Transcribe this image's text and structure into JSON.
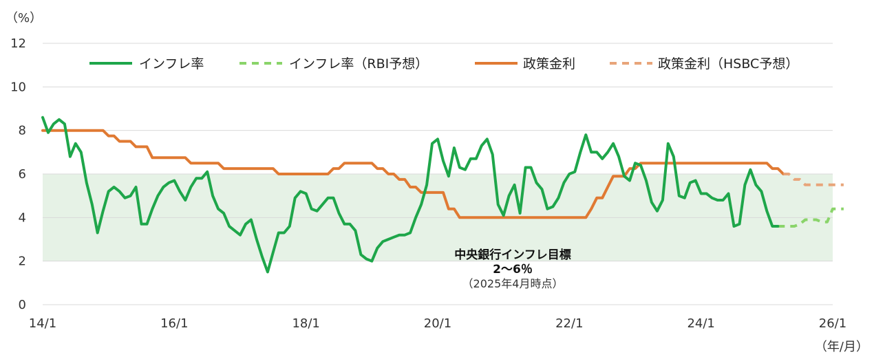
{
  "chart_data": {
    "type": "line",
    "ylabel_unit": "（%）",
    "xlabel_unit": "（年/月）",
    "ylim": [
      0,
      12
    ],
    "yticks": [
      "0",
      "2",
      "4",
      "6",
      "8",
      "10",
      "12"
    ],
    "xlim": [
      "2014-01",
      "2026-01"
    ],
    "xticks": [
      {
        "label": "14/1",
        "x": "2014-01"
      },
      {
        "label": "16/1",
        "x": "2016-01"
      },
      {
        "label": "18/1",
        "x": "2018-01"
      },
      {
        "label": "20/1",
        "x": "2020-01"
      },
      {
        "label": "22/1",
        "x": "2022-01"
      },
      {
        "label": "24/1",
        "x": "2024-01"
      },
      {
        "label": "26/1",
        "x": "2026-01"
      }
    ],
    "grid": true,
    "legend_position": "top",
    "target_band": {
      "y_range": [
        2,
        6
      ],
      "title": "中央銀行インフレ目標",
      "range_text": "2～6％",
      "note": "（2025年4月時点）",
      "color": "#e6f2e6"
    },
    "series": [
      {
        "name": "インフレ率",
        "color": "#1ea64a",
        "style": "solid",
        "points": [
          [
            "2014-01",
            8.6
          ],
          [
            "2014-02",
            7.9
          ],
          [
            "2014-03",
            8.3
          ],
          [
            "2014-04",
            8.5
          ],
          [
            "2014-05",
            8.3
          ],
          [
            "2014-06",
            6.8
          ],
          [
            "2014-07",
            7.4
          ],
          [
            "2014-08",
            7.0
          ],
          [
            "2014-09",
            5.6
          ],
          [
            "2014-10",
            4.6
          ],
          [
            "2014-11",
            3.3
          ],
          [
            "2014-12",
            4.3
          ],
          [
            "2015-01",
            5.2
          ],
          [
            "2015-02",
            5.4
          ],
          [
            "2015-03",
            5.2
          ],
          [
            "2015-04",
            4.9
          ],
          [
            "2015-05",
            5.0
          ],
          [
            "2015-06",
            5.4
          ],
          [
            "2015-07",
            3.7
          ],
          [
            "2015-08",
            3.7
          ],
          [
            "2015-09",
            4.4
          ],
          [
            "2015-10",
            5.0
          ],
          [
            "2015-11",
            5.4
          ],
          [
            "2015-12",
            5.6
          ],
          [
            "2016-01",
            5.7
          ],
          [
            "2016-02",
            5.2
          ],
          [
            "2016-03",
            4.8
          ],
          [
            "2016-04",
            5.4
          ],
          [
            "2016-05",
            5.8
          ],
          [
            "2016-06",
            5.8
          ],
          [
            "2016-07",
            6.1
          ],
          [
            "2016-08",
            5.0
          ],
          [
            "2016-09",
            4.4
          ],
          [
            "2016-10",
            4.2
          ],
          [
            "2016-11",
            3.6
          ],
          [
            "2016-12",
            3.4
          ],
          [
            "2017-01",
            3.2
          ],
          [
            "2017-02",
            3.7
          ],
          [
            "2017-03",
            3.9
          ],
          [
            "2017-04",
            3.0
          ],
          [
            "2017-05",
            2.2
          ],
          [
            "2017-06",
            1.5
          ],
          [
            "2017-07",
            2.4
          ],
          [
            "2017-08",
            3.3
          ],
          [
            "2017-09",
            3.3
          ],
          [
            "2017-10",
            3.6
          ],
          [
            "2017-11",
            4.9
          ],
          [
            "2017-12",
            5.2
          ],
          [
            "2018-01",
            5.1
          ],
          [
            "2018-02",
            4.4
          ],
          [
            "2018-03",
            4.3
          ],
          [
            "2018-04",
            4.6
          ],
          [
            "2018-05",
            4.9
          ],
          [
            "2018-06",
            4.9
          ],
          [
            "2018-07",
            4.2
          ],
          [
            "2018-08",
            3.7
          ],
          [
            "2018-09",
            3.7
          ],
          [
            "2018-10",
            3.4
          ],
          [
            "2018-11",
            2.3
          ],
          [
            "2018-12",
            2.1
          ],
          [
            "2019-01",
            2.0
          ],
          [
            "2019-02",
            2.6
          ],
          [
            "2019-03",
            2.9
          ],
          [
            "2019-04",
            3.0
          ],
          [
            "2019-05",
            3.1
          ],
          [
            "2019-06",
            3.2
          ],
          [
            "2019-07",
            3.2
          ],
          [
            "2019-08",
            3.3
          ],
          [
            "2019-09",
            4.0
          ],
          [
            "2019-10",
            4.6
          ],
          [
            "2019-11",
            5.5
          ],
          [
            "2019-12",
            7.4
          ],
          [
            "2020-01",
            7.6
          ],
          [
            "2020-02",
            6.6
          ],
          [
            "2020-03",
            5.9
          ],
          [
            "2020-04",
            7.2
          ],
          [
            "2020-05",
            6.3
          ],
          [
            "2020-06",
            6.2
          ],
          [
            "2020-07",
            6.7
          ],
          [
            "2020-08",
            6.7
          ],
          [
            "2020-09",
            7.3
          ],
          [
            "2020-10",
            7.6
          ],
          [
            "2020-11",
            6.9
          ],
          [
            "2020-12",
            4.6
          ],
          [
            "2021-01",
            4.1
          ],
          [
            "2021-02",
            5.0
          ],
          [
            "2021-03",
            5.5
          ],
          [
            "2021-04",
            4.2
          ],
          [
            "2021-05",
            6.3
          ],
          [
            "2021-06",
            6.3
          ],
          [
            "2021-07",
            5.6
          ],
          [
            "2021-08",
            5.3
          ],
          [
            "2021-09",
            4.4
          ],
          [
            "2021-10",
            4.5
          ],
          [
            "2021-11",
            4.9
          ],
          [
            "2021-12",
            5.6
          ],
          [
            "2022-01",
            6.0
          ],
          [
            "2022-02",
            6.1
          ],
          [
            "2022-03",
            7.0
          ],
          [
            "2022-04",
            7.8
          ],
          [
            "2022-05",
            7.0
          ],
          [
            "2022-06",
            7.0
          ],
          [
            "2022-07",
            6.7
          ],
          [
            "2022-08",
            7.0
          ],
          [
            "2022-09",
            7.4
          ],
          [
            "2022-10",
            6.8
          ],
          [
            "2022-11",
            5.9
          ],
          [
            "2022-12",
            5.7
          ],
          [
            "2023-01",
            6.5
          ],
          [
            "2023-02",
            6.4
          ],
          [
            "2023-03",
            5.7
          ],
          [
            "2023-04",
            4.7
          ],
          [
            "2023-05",
            4.3
          ],
          [
            "2023-06",
            4.8
          ],
          [
            "2023-07",
            7.4
          ],
          [
            "2023-08",
            6.8
          ],
          [
            "2023-09",
            5.0
          ],
          [
            "2023-10",
            4.9
          ],
          [
            "2023-11",
            5.6
          ],
          [
            "2023-12",
            5.7
          ],
          [
            "2024-01",
            5.1
          ],
          [
            "2024-02",
            5.1
          ],
          [
            "2024-03",
            4.9
          ],
          [
            "2024-04",
            4.8
          ],
          [
            "2024-05",
            4.8
          ],
          [
            "2024-06",
            5.1
          ],
          [
            "2024-07",
            3.6
          ],
          [
            "2024-08",
            3.7
          ],
          [
            "2024-09",
            5.5
          ],
          [
            "2024-10",
            6.2
          ],
          [
            "2024-11",
            5.5
          ],
          [
            "2024-12",
            5.2
          ],
          [
            "2025-01",
            4.3
          ],
          [
            "2025-02",
            3.6
          ],
          [
            "2025-03",
            3.6
          ]
        ]
      },
      {
        "name": "インフレ率（RBI予想）",
        "color": "#8ad46a",
        "style": "dashed",
        "points": [
          [
            "2025-03",
            3.6
          ],
          [
            "2025-04",
            3.6
          ],
          [
            "2025-05",
            3.6
          ],
          [
            "2025-06",
            3.6
          ],
          [
            "2025-07",
            3.7
          ],
          [
            "2025-08",
            3.9
          ],
          [
            "2025-09",
            3.9
          ],
          [
            "2025-10",
            3.9
          ],
          [
            "2025-11",
            3.8
          ],
          [
            "2025-12",
            3.8
          ],
          [
            "2026-01",
            4.4
          ],
          [
            "2026-02",
            4.4
          ],
          [
            "2026-03",
            4.4
          ]
        ]
      },
      {
        "name": "政策金利",
        "color": "#e07a33",
        "style": "solid",
        "points": [
          [
            "2014-01",
            8.0
          ],
          [
            "2014-12",
            8.0
          ],
          [
            "2015-01",
            7.75
          ],
          [
            "2015-02",
            7.75
          ],
          [
            "2015-03",
            7.5
          ],
          [
            "2015-05",
            7.5
          ],
          [
            "2015-06",
            7.25
          ],
          [
            "2015-08",
            7.25
          ],
          [
            "2015-09",
            6.75
          ],
          [
            "2016-03",
            6.75
          ],
          [
            "2016-04",
            6.5
          ],
          [
            "2016-09",
            6.5
          ],
          [
            "2016-10",
            6.25
          ],
          [
            "2017-07",
            6.25
          ],
          [
            "2017-08",
            6.0
          ],
          [
            "2018-05",
            6.0
          ],
          [
            "2018-06",
            6.25
          ],
          [
            "2018-07",
            6.25
          ],
          [
            "2018-08",
            6.5
          ],
          [
            "2019-01",
            6.5
          ],
          [
            "2019-02",
            6.25
          ],
          [
            "2019-03",
            6.25
          ],
          [
            "2019-04",
            6.0
          ],
          [
            "2019-05",
            6.0
          ],
          [
            "2019-06",
            5.75
          ],
          [
            "2019-07",
            5.75
          ],
          [
            "2019-08",
            5.4
          ],
          [
            "2019-09",
            5.4
          ],
          [
            "2019-10",
            5.15
          ],
          [
            "2020-02",
            5.15
          ],
          [
            "2020-03",
            4.4
          ],
          [
            "2020-04",
            4.4
          ],
          [
            "2020-05",
            4.0
          ],
          [
            "2022-04",
            4.0
          ],
          [
            "2022-05",
            4.4
          ],
          [
            "2022-06",
            4.9
          ],
          [
            "2022-07",
            4.9
          ],
          [
            "2022-08",
            5.4
          ],
          [
            "2022-09",
            5.9
          ],
          [
            "2022-11",
            5.9
          ],
          [
            "2022-12",
            6.25
          ],
          [
            "2023-01",
            6.25
          ],
          [
            "2023-02",
            6.5
          ],
          [
            "2025-01",
            6.5
          ],
          [
            "2025-02",
            6.25
          ],
          [
            "2025-03",
            6.25
          ],
          [
            "2025-04",
            6.0
          ]
        ]
      },
      {
        "name": "政策金利（HSBC予想）",
        "color": "#e8a57a",
        "style": "dashed",
        "points": [
          [
            "2025-04",
            6.0
          ],
          [
            "2025-05",
            6.0
          ],
          [
            "2025-06",
            5.75
          ],
          [
            "2025-07",
            5.75
          ],
          [
            "2025-08",
            5.5
          ],
          [
            "2025-09",
            5.5
          ],
          [
            "2025-10",
            5.5
          ],
          [
            "2025-11",
            5.5
          ],
          [
            "2025-12",
            5.5
          ],
          [
            "2026-01",
            5.5
          ],
          [
            "2026-02",
            5.5
          ],
          [
            "2026-03",
            5.5
          ]
        ]
      }
    ]
  }
}
